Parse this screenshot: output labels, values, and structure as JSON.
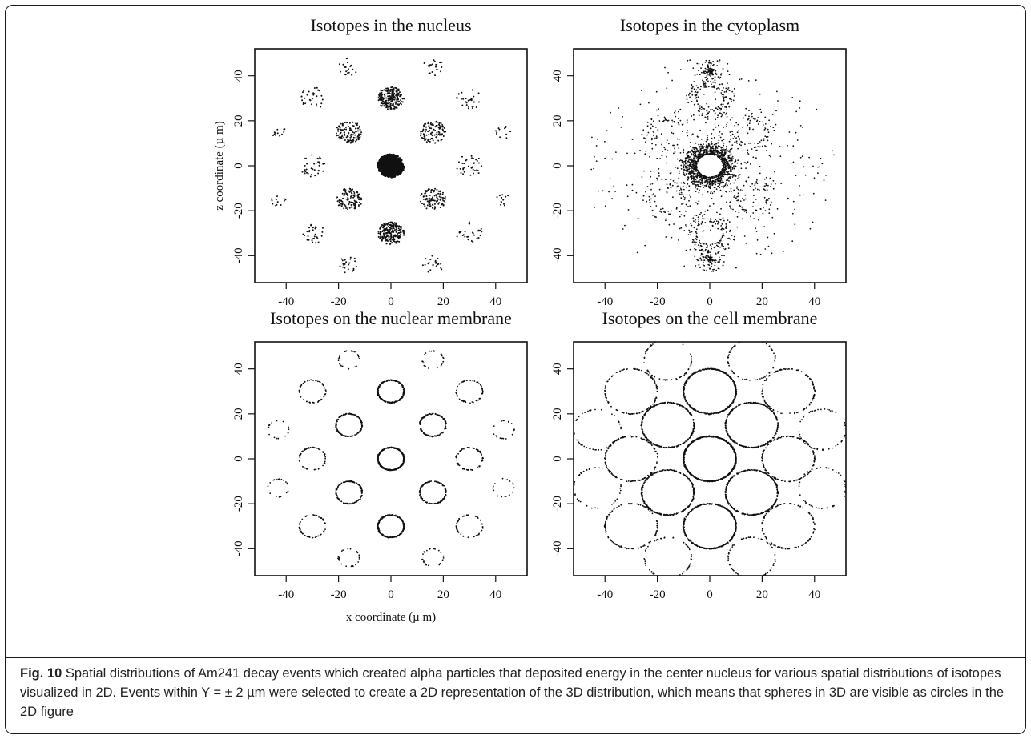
{
  "chart_data": [
    {
      "type": "scatter",
      "title": "Isotopes in the nucleus",
      "ylabel": "z coordinate (µ m)",
      "xlabel": "",
      "xlim": [
        -52,
        52
      ],
      "ylim": [
        -52,
        52
      ],
      "xticks": [
        -40,
        -20,
        0,
        20,
        40
      ],
      "yticks": [
        -40,
        -20,
        0,
        20,
        40
      ],
      "distribution": "filled_discs",
      "clusters": [
        {
          "x": 0,
          "z": 0,
          "r": 5,
          "n": 500
        },
        {
          "x": 0,
          "z": 30,
          "r": 5,
          "n": 220
        },
        {
          "x": 0,
          "z": -30,
          "r": 5,
          "n": 220
        },
        {
          "x": -16,
          "z": 15,
          "r": 5,
          "n": 110
        },
        {
          "x": 16,
          "z": 15,
          "r": 5,
          "n": 110
        },
        {
          "x": -16,
          "z": -15,
          "r": 5,
          "n": 110
        },
        {
          "x": 16,
          "z": -15,
          "r": 5,
          "n": 110
        },
        {
          "x": -30,
          "z": 30,
          "r": 5,
          "n": 30
        },
        {
          "x": 30,
          "z": 30,
          "r": 5,
          "n": 30
        },
        {
          "x": -30,
          "z": 0,
          "r": 5,
          "n": 35
        },
        {
          "x": 30,
          "z": 0,
          "r": 5,
          "n": 35
        },
        {
          "x": -30,
          "z": -30,
          "r": 5,
          "n": 30
        },
        {
          "x": 30,
          "z": -30,
          "r": 5,
          "n": 30
        },
        {
          "x": -16,
          "z": 44,
          "r": 4,
          "n": 22
        },
        {
          "x": 16,
          "z": 44,
          "r": 4,
          "n": 22
        },
        {
          "x": -16,
          "z": -44,
          "r": 4,
          "n": 22
        },
        {
          "x": 16,
          "z": -44,
          "r": 4,
          "n": 22
        },
        {
          "x": -43,
          "z": 15,
          "r": 3,
          "n": 12
        },
        {
          "x": 43,
          "z": 15,
          "r": 3,
          "n": 12
        },
        {
          "x": -43,
          "z": -15,
          "r": 3,
          "n": 12
        },
        {
          "x": 43,
          "z": -15,
          "r": 3,
          "n": 12
        }
      ]
    },
    {
      "type": "scatter",
      "title": "Isotopes in the cytoplasm",
      "ylabel": "",
      "xlabel": "",
      "xlim": [
        -52,
        52
      ],
      "ylim": [
        -52,
        52
      ],
      "xticks": [
        -40,
        -20,
        0,
        20,
        40
      ],
      "yticks": [
        -40,
        -20,
        0,
        20,
        40
      ],
      "distribution": "diffuse_shells",
      "clusters": [
        {
          "x": 0,
          "z": 0,
          "r_in": 5,
          "r_out": 10,
          "n": 950
        },
        {
          "x": 0,
          "z": 30,
          "r_in": 5,
          "r_out": 10,
          "n": 150
        },
        {
          "x": 0,
          "z": -30,
          "r_in": 5,
          "r_out": 10,
          "n": 150
        },
        {
          "x": 0,
          "z": 42,
          "r_in": 0,
          "r_out": 6,
          "n": 120
        },
        {
          "x": 0,
          "z": -42,
          "r_in": 0,
          "r_out": 6,
          "n": 120
        },
        {
          "x": -16,
          "z": 15,
          "r_in": 5,
          "r_out": 10,
          "n": 60
        },
        {
          "x": 16,
          "z": 15,
          "r_in": 5,
          "r_out": 10,
          "n": 60
        },
        {
          "x": -16,
          "z": -15,
          "r_in": 5,
          "r_out": 10,
          "n": 60
        },
        {
          "x": 16,
          "z": -15,
          "r_in": 5,
          "r_out": 10,
          "n": 60
        },
        {
          "x": 0,
          "z": 0,
          "r_in": 10,
          "r_out": 48,
          "n": 520
        }
      ]
    },
    {
      "type": "scatter",
      "title": "Isotopes on the nuclear membrane",
      "ylabel": "",
      "xlabel": "x coordinate (µ m)",
      "xlim": [
        -52,
        52
      ],
      "ylim": [
        -52,
        52
      ],
      "xticks": [
        -40,
        -20,
        0,
        20,
        40
      ],
      "yticks": [
        -40,
        -20,
        0,
        20,
        40
      ],
      "distribution": "rings",
      "clusters": [
        {
          "x": 0,
          "z": 0,
          "r": 5,
          "n": 420
        },
        {
          "x": 0,
          "z": 30,
          "r": 5,
          "n": 260
        },
        {
          "x": 0,
          "z": -30,
          "r": 5,
          "n": 260
        },
        {
          "x": -16,
          "z": 15,
          "r": 5,
          "n": 140
        },
        {
          "x": 16,
          "z": 15,
          "r": 5,
          "n": 140
        },
        {
          "x": -16,
          "z": -15,
          "r": 5,
          "n": 140
        },
        {
          "x": 16,
          "z": -15,
          "r": 5,
          "n": 140
        },
        {
          "x": -30,
          "z": 30,
          "r": 5,
          "n": 55
        },
        {
          "x": 30,
          "z": 30,
          "r": 5,
          "n": 55
        },
        {
          "x": -30,
          "z": 0,
          "r": 5,
          "n": 65
        },
        {
          "x": 30,
          "z": 0,
          "r": 5,
          "n": 65
        },
        {
          "x": -30,
          "z": -30,
          "r": 5,
          "n": 55
        },
        {
          "x": 30,
          "z": -30,
          "r": 5,
          "n": 55
        },
        {
          "x": -16,
          "z": 44,
          "r": 4,
          "n": 30
        },
        {
          "x": 16,
          "z": 44,
          "r": 4,
          "n": 30
        },
        {
          "x": -16,
          "z": -44,
          "r": 4,
          "n": 30
        },
        {
          "x": 16,
          "z": -44,
          "r": 4,
          "n": 30
        },
        {
          "x": -43,
          "z": 13,
          "r": 4,
          "n": 18
        },
        {
          "x": 43,
          "z": 13,
          "r": 4,
          "n": 18
        },
        {
          "x": -43,
          "z": -13,
          "r": 4,
          "n": 18
        },
        {
          "x": 43,
          "z": -13,
          "r": 4,
          "n": 18
        }
      ]
    },
    {
      "type": "scatter",
      "title": "Isotopes on the cell membrane",
      "ylabel": "",
      "xlabel": "",
      "xlim": [
        -52,
        52
      ],
      "ylim": [
        -52,
        52
      ],
      "xticks": [
        -40,
        -20,
        0,
        20,
        40
      ],
      "yticks": [
        -40,
        -20,
        0,
        20,
        40
      ],
      "distribution": "rings",
      "clusters": [
        {
          "x": 0,
          "z": 0,
          "r": 10,
          "n": 700
        },
        {
          "x": 0,
          "z": 30,
          "r": 10,
          "n": 420
        },
        {
          "x": 0,
          "z": -30,
          "r": 10,
          "n": 420
        },
        {
          "x": -16,
          "z": 15,
          "r": 10,
          "n": 300
        },
        {
          "x": 16,
          "z": 15,
          "r": 10,
          "n": 300
        },
        {
          "x": -16,
          "z": -15,
          "r": 10,
          "n": 300
        },
        {
          "x": 16,
          "z": -15,
          "r": 10,
          "n": 300
        },
        {
          "x": -30,
          "z": 30,
          "r": 10,
          "n": 110
        },
        {
          "x": 30,
          "z": 30,
          "r": 10,
          "n": 110
        },
        {
          "x": -30,
          "z": 0,
          "r": 10,
          "n": 140
        },
        {
          "x": 30,
          "z": 0,
          "r": 10,
          "n": 140
        },
        {
          "x": -30,
          "z": -30,
          "r": 10,
          "n": 110
        },
        {
          "x": 30,
          "z": -30,
          "r": 10,
          "n": 110
        },
        {
          "x": -16,
          "z": 44,
          "r": 9,
          "n": 70
        },
        {
          "x": 16,
          "z": 44,
          "r": 9,
          "n": 70
        },
        {
          "x": -16,
          "z": -44,
          "r": 9,
          "n": 70
        },
        {
          "x": 16,
          "z": -44,
          "r": 9,
          "n": 70
        },
        {
          "x": -43,
          "z": 13,
          "r": 9,
          "n": 45
        },
        {
          "x": 43,
          "z": 13,
          "r": 9,
          "n": 45
        },
        {
          "x": -43,
          "z": -13,
          "r": 9,
          "n": 45
        },
        {
          "x": 43,
          "z": -13,
          "r": 9,
          "n": 45
        }
      ]
    }
  ],
  "caption": {
    "label": "Fig. 10",
    "text": " Spatial distributions of Am241 decay events which created alpha particles that deposited energy in the center nucleus for various spatial distributions of isotopes visualized in 2D. Events within Y = ± 2 µm were selected to create a 2D representation of the 3D distribution, which means that spheres in 3D are visible as circles in the 2D figure"
  }
}
